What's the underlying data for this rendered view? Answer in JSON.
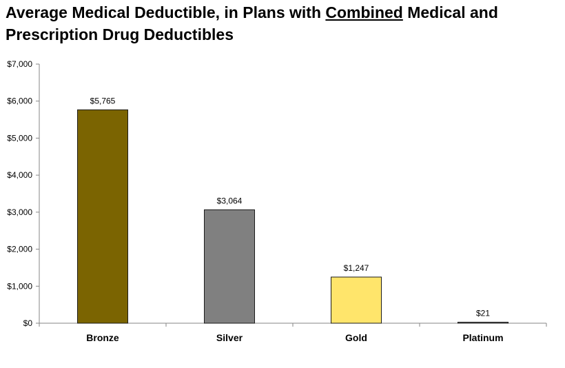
{
  "chart_data": {
    "type": "bar",
    "title_parts": [
      {
        "text": "Average Medical Deductible, in Plans with ",
        "underline": false
      },
      {
        "text": "Combined",
        "underline": true
      },
      {
        "text": " Medical and Prescription Drug Deductibles",
        "underline": false
      }
    ],
    "categories": [
      "Bronze",
      "Silver",
      "Gold",
      "Platinum"
    ],
    "values": [
      5765,
      3064,
      1247,
      21
    ],
    "data_labels": [
      "$5,765",
      "$3,064",
      "$1,247",
      "$21"
    ],
    "bar_colors": [
      "#7b6401",
      "#808080",
      "#ffe56b",
      "#808080"
    ],
    "bar_border_color": "#1a1a1a",
    "ylim": [
      0,
      7000
    ],
    "yticks": [
      0,
      1000,
      2000,
      3000,
      4000,
      5000,
      6000,
      7000
    ],
    "ytick_labels": [
      "$0",
      "$1,000",
      "$2,000",
      "$3,000",
      "$4,000",
      "$5,000",
      "$6,000",
      "$7,000"
    ],
    "xlabel": "",
    "ylabel": "",
    "grid": false,
    "legend": "none"
  }
}
